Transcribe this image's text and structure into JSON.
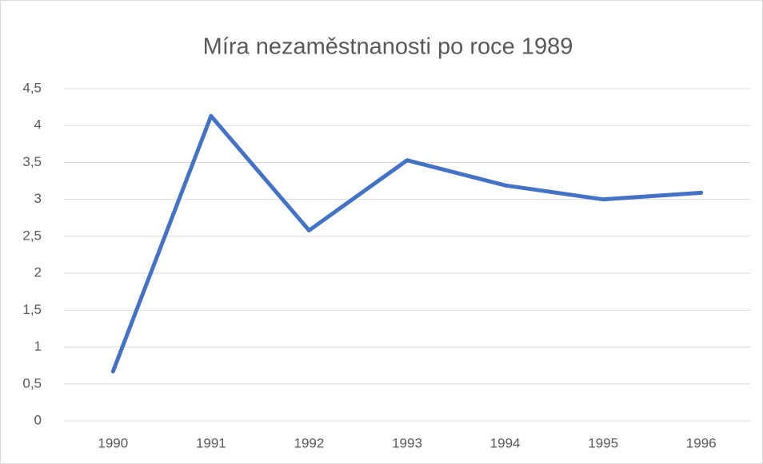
{
  "chart_data": {
    "type": "line",
    "title": "Míra nezaměstnanosti po roce 1989",
    "categories": [
      "1990",
      "1991",
      "1992",
      "1993",
      "1994",
      "1995",
      "1996"
    ],
    "values": [
      0.67,
      4.13,
      2.58,
      3.53,
      3.19,
      3.0,
      3.09
    ],
    "color": "#4472c4",
    "ylim": [
      0,
      4.5
    ],
    "yticks": [
      0,
      {
        "value": 0.5,
        "label": "0,5"
      },
      1,
      {
        "value": 1.5,
        "label": "1,5"
      },
      2,
      {
        "value": 2.5,
        "label": "2,5"
      },
      3,
      {
        "value": 3.5,
        "label": "3,5"
      },
      4,
      {
        "value": 4.5,
        "label": "4,5"
      }
    ],
    "grid": true
  }
}
